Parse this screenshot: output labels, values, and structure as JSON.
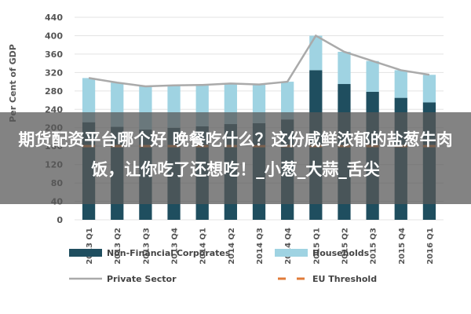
{
  "chart_data": {
    "type": "bar",
    "stacked": true,
    "ylabel": "Per Cent of GDP",
    "ylim": [
      0,
      440
    ],
    "yticks": [
      0,
      40,
      80,
      120,
      160,
      200,
      240,
      280,
      320,
      360,
      400,
      440
    ],
    "grid": true,
    "categories": [
      "2013 Q1",
      "2013 Q2",
      "2013 Q3",
      "2013 Q4",
      "2014 Q1",
      "2014 Q2",
      "2014 Q3",
      "2014 Q4",
      "2015 Q1",
      "2015 Q2",
      "2015 Q3",
      "2015 Q4",
      "2016 Q1"
    ],
    "series": [
      {
        "name": "Non-Financial Corporates",
        "kind": "bar",
        "color": "#1f4e5f",
        "values": [
          212,
          202,
          196,
          200,
          203,
          208,
          210,
          218,
          325,
          295,
          278,
          265,
          255
        ]
      },
      {
        "name": "Households",
        "kind": "bar",
        "color": "#9fd3e2",
        "values": [
          96,
          96,
          94,
          92,
          90,
          88,
          84,
          82,
          75,
          70,
          67,
          60,
          60
        ]
      },
      {
        "name": "Private Sector",
        "kind": "line",
        "color": "#aaaaaa",
        "values": [
          308,
          298,
          290,
          292,
          293,
          296,
          294,
          300,
          400,
          365,
          345,
          325,
          315
        ]
      },
      {
        "name": "EU Threshold",
        "kind": "dash",
        "color": "#e07b39",
        "values": [
          160,
          160,
          160,
          160,
          160,
          160,
          160,
          160,
          160,
          160,
          160,
          160,
          160
        ]
      }
    ],
    "legend_position": "bottom"
  },
  "overlay": {
    "text": "期货配资平台哪个好 晚餐吃什么？这份咸鲜浓郁的盐葱牛肉饭，让你吃了还想吃！_小葱_大蒜_舌尖"
  }
}
